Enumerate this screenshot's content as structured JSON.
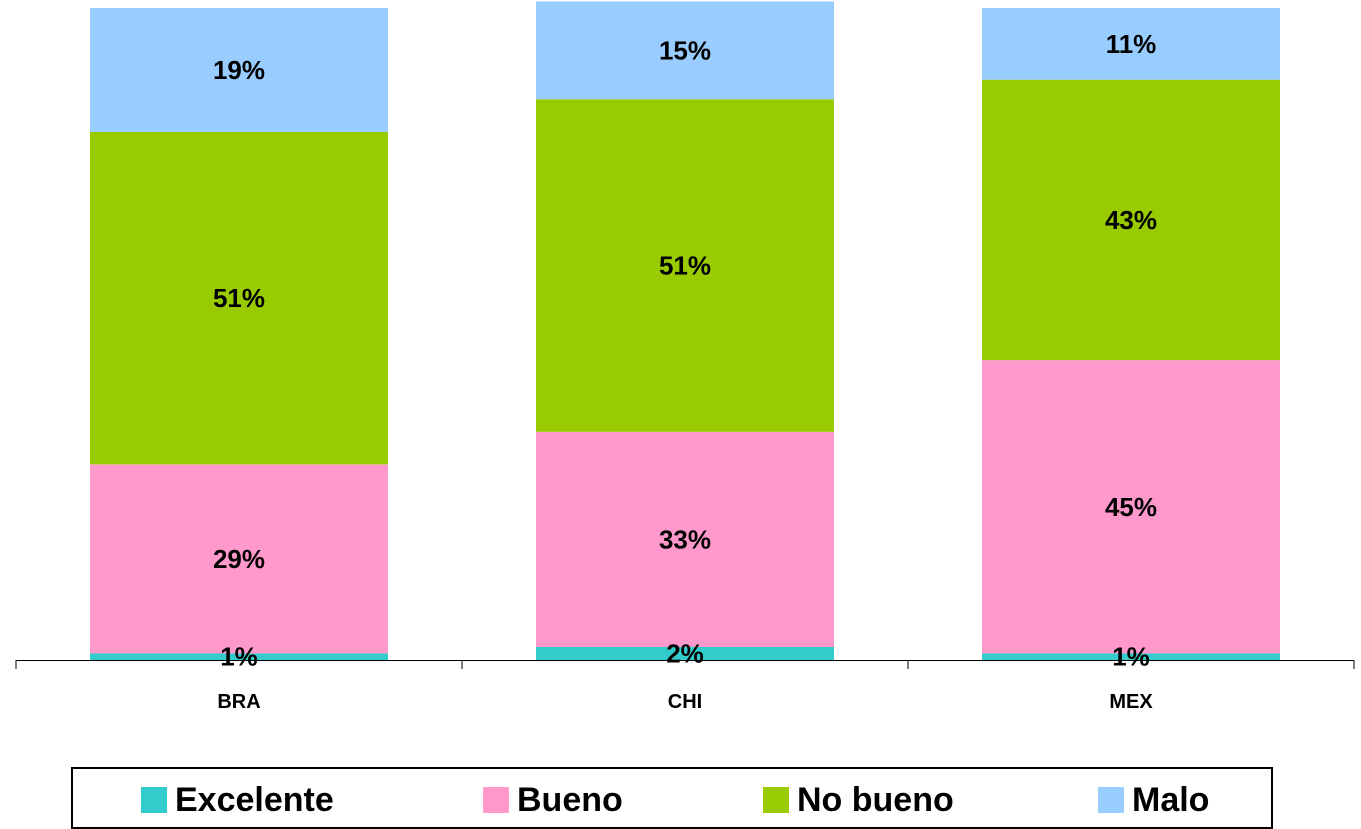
{
  "chart_data": {
    "type": "bar",
    "stacked": true,
    "categories": [
      "BRA",
      "CHI",
      "MEX"
    ],
    "series": [
      {
        "name": "Excelente",
        "values": [
          1,
          2,
          1
        ],
        "labels": [
          "1%",
          "2%",
          "1%"
        ],
        "color": "#33CCCC"
      },
      {
        "name": "Bueno",
        "values": [
          29,
          33,
          45
        ],
        "labels": [
          "29%",
          "33%",
          "45%"
        ],
        "color": "#FF99CC"
      },
      {
        "name": "No bueno",
        "values": [
          51,
          51,
          43
        ],
        "labels": [
          "51%",
          "51%",
          "43%"
        ],
        "color": "#99CC00"
      },
      {
        "name": "Malo",
        "values": [
          19,
          15,
          11
        ],
        "labels": [
          "19%",
          "15%",
          "11%"
        ],
        "color": "#99CCFF"
      }
    ],
    "ylim": [
      0,
      100
    ],
    "grid": false,
    "legend_position": "bottom"
  }
}
